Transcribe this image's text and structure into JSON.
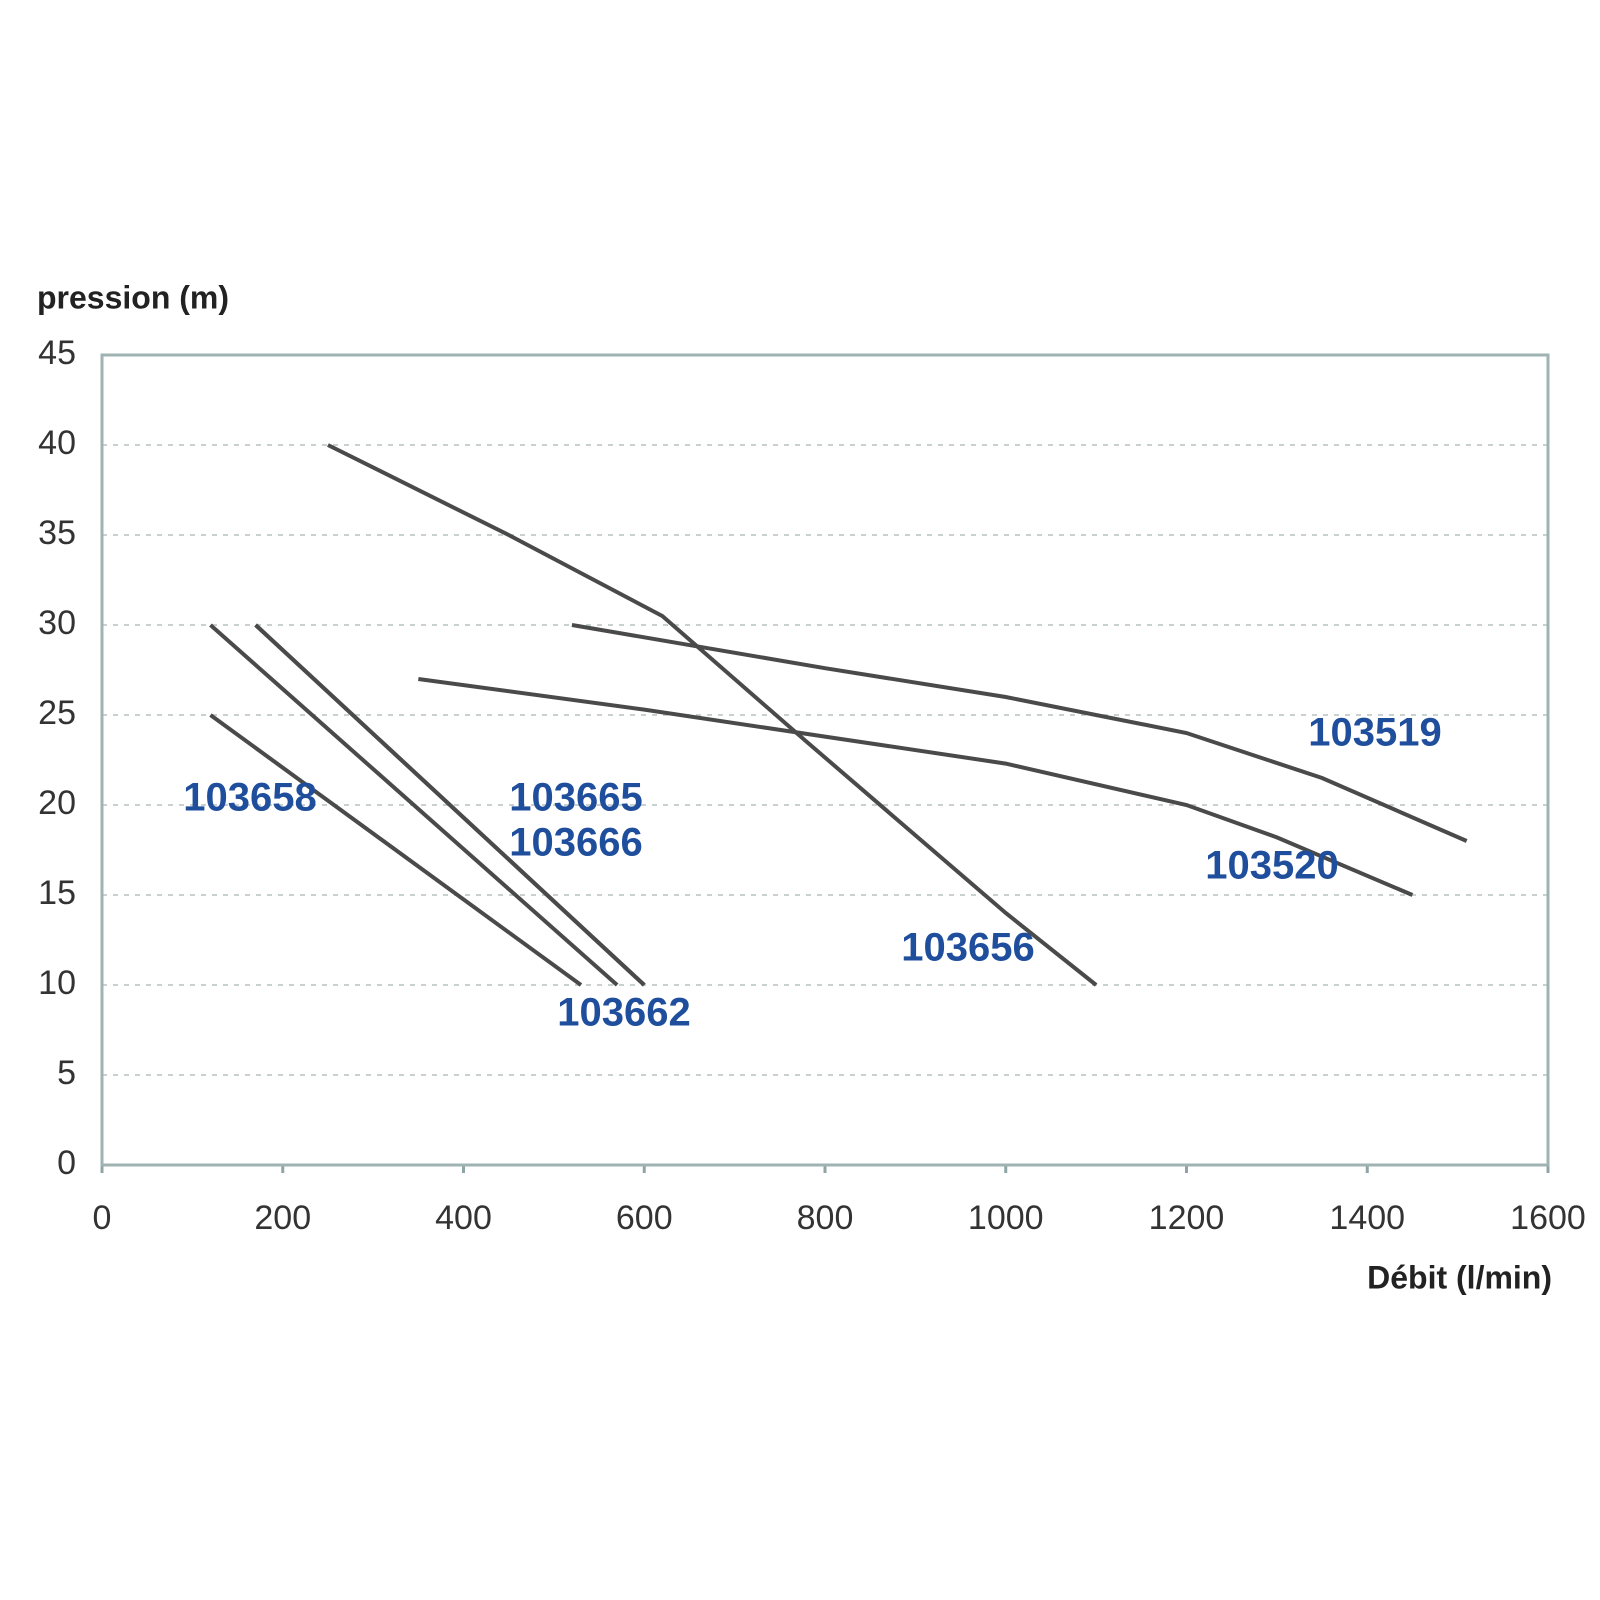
{
  "chart_data": {
    "type": "line",
    "y_label": "pression (m)",
    "x_label": "Débit (l/min)",
    "xlim": [
      0,
      1600
    ],
    "xticks": [
      0,
      200,
      400,
      600,
      800,
      1000,
      1200,
      1400,
      1600
    ],
    "ylim": [
      0,
      45
    ],
    "yticks": [
      0,
      5,
      10,
      15,
      20,
      25,
      30,
      35,
      40,
      45
    ],
    "grid": true,
    "line_color": "#4a4a4a",
    "label_color": "#1f4e9c",
    "series": [
      {
        "name": "103519",
        "x": [
          520,
          800,
          1000,
          1200,
          1350,
          1510
        ],
        "values": [
          30,
          27.6,
          26,
          24,
          21.5,
          18
        ]
      },
      {
        "name": "103520",
        "x": [
          350,
          600,
          800,
          1000,
          1200,
          1300,
          1450
        ],
        "values": [
          27,
          25.3,
          23.8,
          22.3,
          20,
          18.2,
          15
        ]
      },
      {
        "name": "103656",
        "x": [
          250,
          450,
          620,
          780,
          1000,
          1100
        ],
        "values": [
          40,
          35,
          30.5,
          23.5,
          14,
          10
        ]
      },
      {
        "name": "103662",
        "x": [
          120,
          570
        ],
        "values": [
          30,
          10
        ]
      },
      {
        "name": "103665",
        "x": [
          170,
          600
        ],
        "values": [
          30,
          10
        ]
      },
      {
        "name": "103666",
        "x": [
          170,
          600
        ],
        "values": [
          30,
          10
        ]
      },
      {
        "name": "103658",
        "x": [
          120,
          530
        ],
        "values": [
          25,
          10
        ]
      }
    ]
  }
}
